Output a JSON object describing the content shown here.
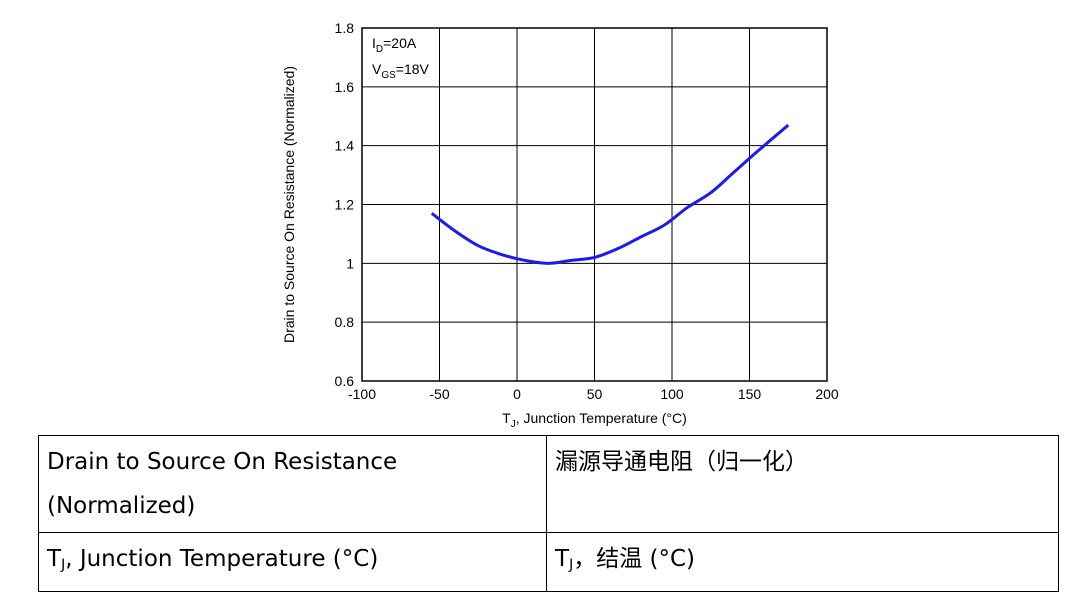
{
  "chart_data": {
    "type": "line",
    "y_label": "Drain to Source On Resistance (Normalized)",
    "x_label": [
      "T",
      "J",
      ", Junction Temperature (°C)"
    ],
    "annotations": [
      [
        "I",
        "D",
        "=20A"
      ],
      [
        "V",
        "GS",
        "=18V"
      ]
    ],
    "x": [
      -55,
      -40,
      -25,
      -10,
      5,
      20,
      35,
      50,
      65,
      80,
      95,
      110,
      125,
      140,
      155,
      175
    ],
    "values": [
      1.17,
      1.11,
      1.06,
      1.03,
      1.01,
      1.0,
      1.01,
      1.02,
      1.05,
      1.09,
      1.13,
      1.19,
      1.24,
      1.31,
      1.38,
      1.47
    ],
    "color": "#1b1bf0",
    "xlim": [
      -100,
      200
    ],
    "xticks": [
      -100,
      -50,
      0,
      50,
      100,
      150,
      200
    ],
    "ylim": [
      0.6,
      1.8
    ],
    "yticks": [
      0.6,
      0.8,
      1,
      1.2,
      1.4,
      1.6,
      1.8
    ],
    "grid": true
  },
  "table": {
    "rows": [
      [
        "Drain to Source On Resistance (Normalized)",
        "漏源导通电阻（归一化）"
      ],
      [
        [
          "T",
          "J",
          ", Junction Temperature (°C)"
        ],
        [
          "T",
          "J",
          "，结温 (°C)"
        ]
      ]
    ]
  }
}
